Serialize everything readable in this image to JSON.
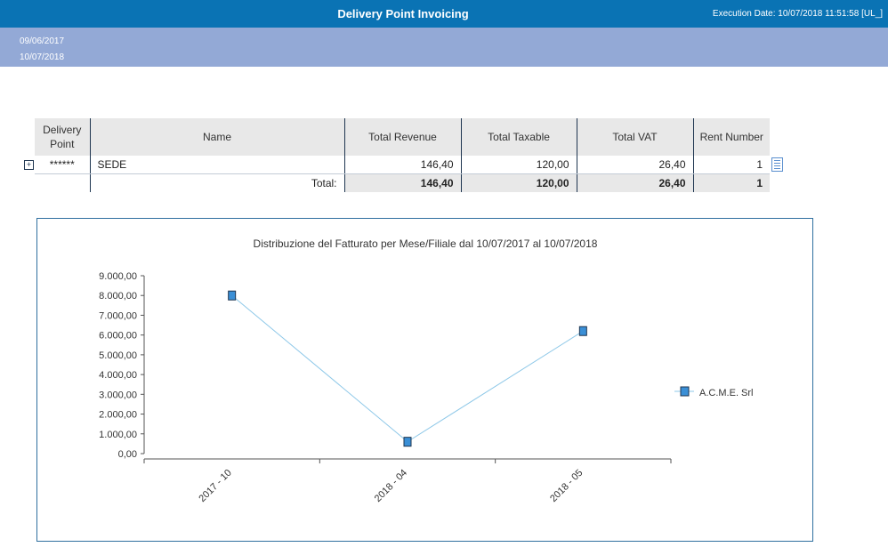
{
  "header": {
    "title": "Delivery Point Invoicing",
    "execution_label": "Execution Date:",
    "execution_value": "10/07/2018 11:51:58 [UL_]"
  },
  "period": {
    "from": "09/06/2017",
    "to": "10/07/2018"
  },
  "table": {
    "columns": {
      "delivery_point_line1": "Delivery",
      "delivery_point_line2": "Point",
      "name": "Name",
      "total_revenue": "Total Revenue",
      "total_taxable": "Total Taxable",
      "total_vat": "Total VAT",
      "rent_number": "Rent Number"
    },
    "rows": [
      {
        "delivery_point": "******",
        "name": "SEDE",
        "total_revenue": "146,40",
        "total_taxable": "120,00",
        "total_vat": "26,40",
        "rent_number": "1"
      }
    ],
    "totals": {
      "label": "Total:",
      "total_revenue": "146,40",
      "total_taxable": "120,00",
      "total_vat": "26,40",
      "rent_number": "1"
    },
    "expand_glyph": "+"
  },
  "icons": {
    "expand": "expand-icon",
    "detail": "document-icon"
  },
  "colors": {
    "header": "#0a73b4",
    "date_band": "#93a9d6",
    "series": "#3a8fd6",
    "line": "#8ec8e8"
  },
  "chart_data": {
    "type": "line",
    "title": "Distribuzione del Fatturato per Mese/Filiale dal 10/07/2017 al 10/07/2018",
    "categories": [
      "2017 - 10",
      "2018 - 04",
      "2018 - 05"
    ],
    "series": [
      {
        "name": "A.C.M.E. Srl",
        "values": [
          8000,
          600,
          6200
        ]
      }
    ],
    "ylim": [
      0,
      9000
    ],
    "y_ticks": [
      "0,00",
      "1.000,00",
      "2.000,00",
      "3.000,00",
      "4.000,00",
      "5.000,00",
      "6.000,00",
      "7.000,00",
      "8.000,00",
      "9.000,00"
    ],
    "legend_position": "right",
    "grid": false
  }
}
